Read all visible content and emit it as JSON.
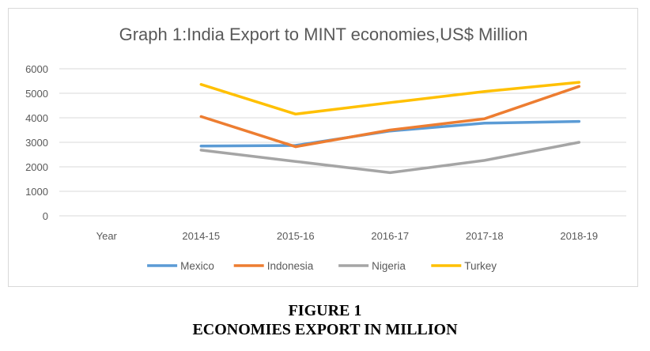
{
  "chart_data": {
    "type": "line",
    "title": "Graph 1:India Export to MINT economies,US$ Million",
    "categories": [
      "Year",
      "2014-15",
      "2015-16",
      "2016-17",
      "2017-18",
      "2018-19"
    ],
    "ylim": [
      0,
      6000
    ],
    "yticks": [
      0,
      1000,
      2000,
      3000,
      4000,
      5000,
      6000
    ],
    "grid": true,
    "legend_position": "bottom",
    "series": [
      {
        "name": "Mexico",
        "color": "#5B9BD5",
        "values": [
          null,
          2850,
          2870,
          3460,
          3780,
          3850
        ]
      },
      {
        "name": "Indonesia",
        "color": "#ED7D31",
        "values": [
          null,
          4050,
          2820,
          3500,
          3960,
          5280
        ]
      },
      {
        "name": "Nigeria",
        "color": "#A5A5A5",
        "values": [
          null,
          2680,
          2220,
          1760,
          2260,
          3000
        ]
      },
      {
        "name": "Turkey",
        "color": "#FFC000",
        "values": [
          null,
          5360,
          4150,
          4620,
          5070,
          5450
        ]
      }
    ]
  },
  "caption": {
    "line1": "FIGURE 1",
    "line2": "ECONOMIES EXPORT IN MILLION"
  }
}
